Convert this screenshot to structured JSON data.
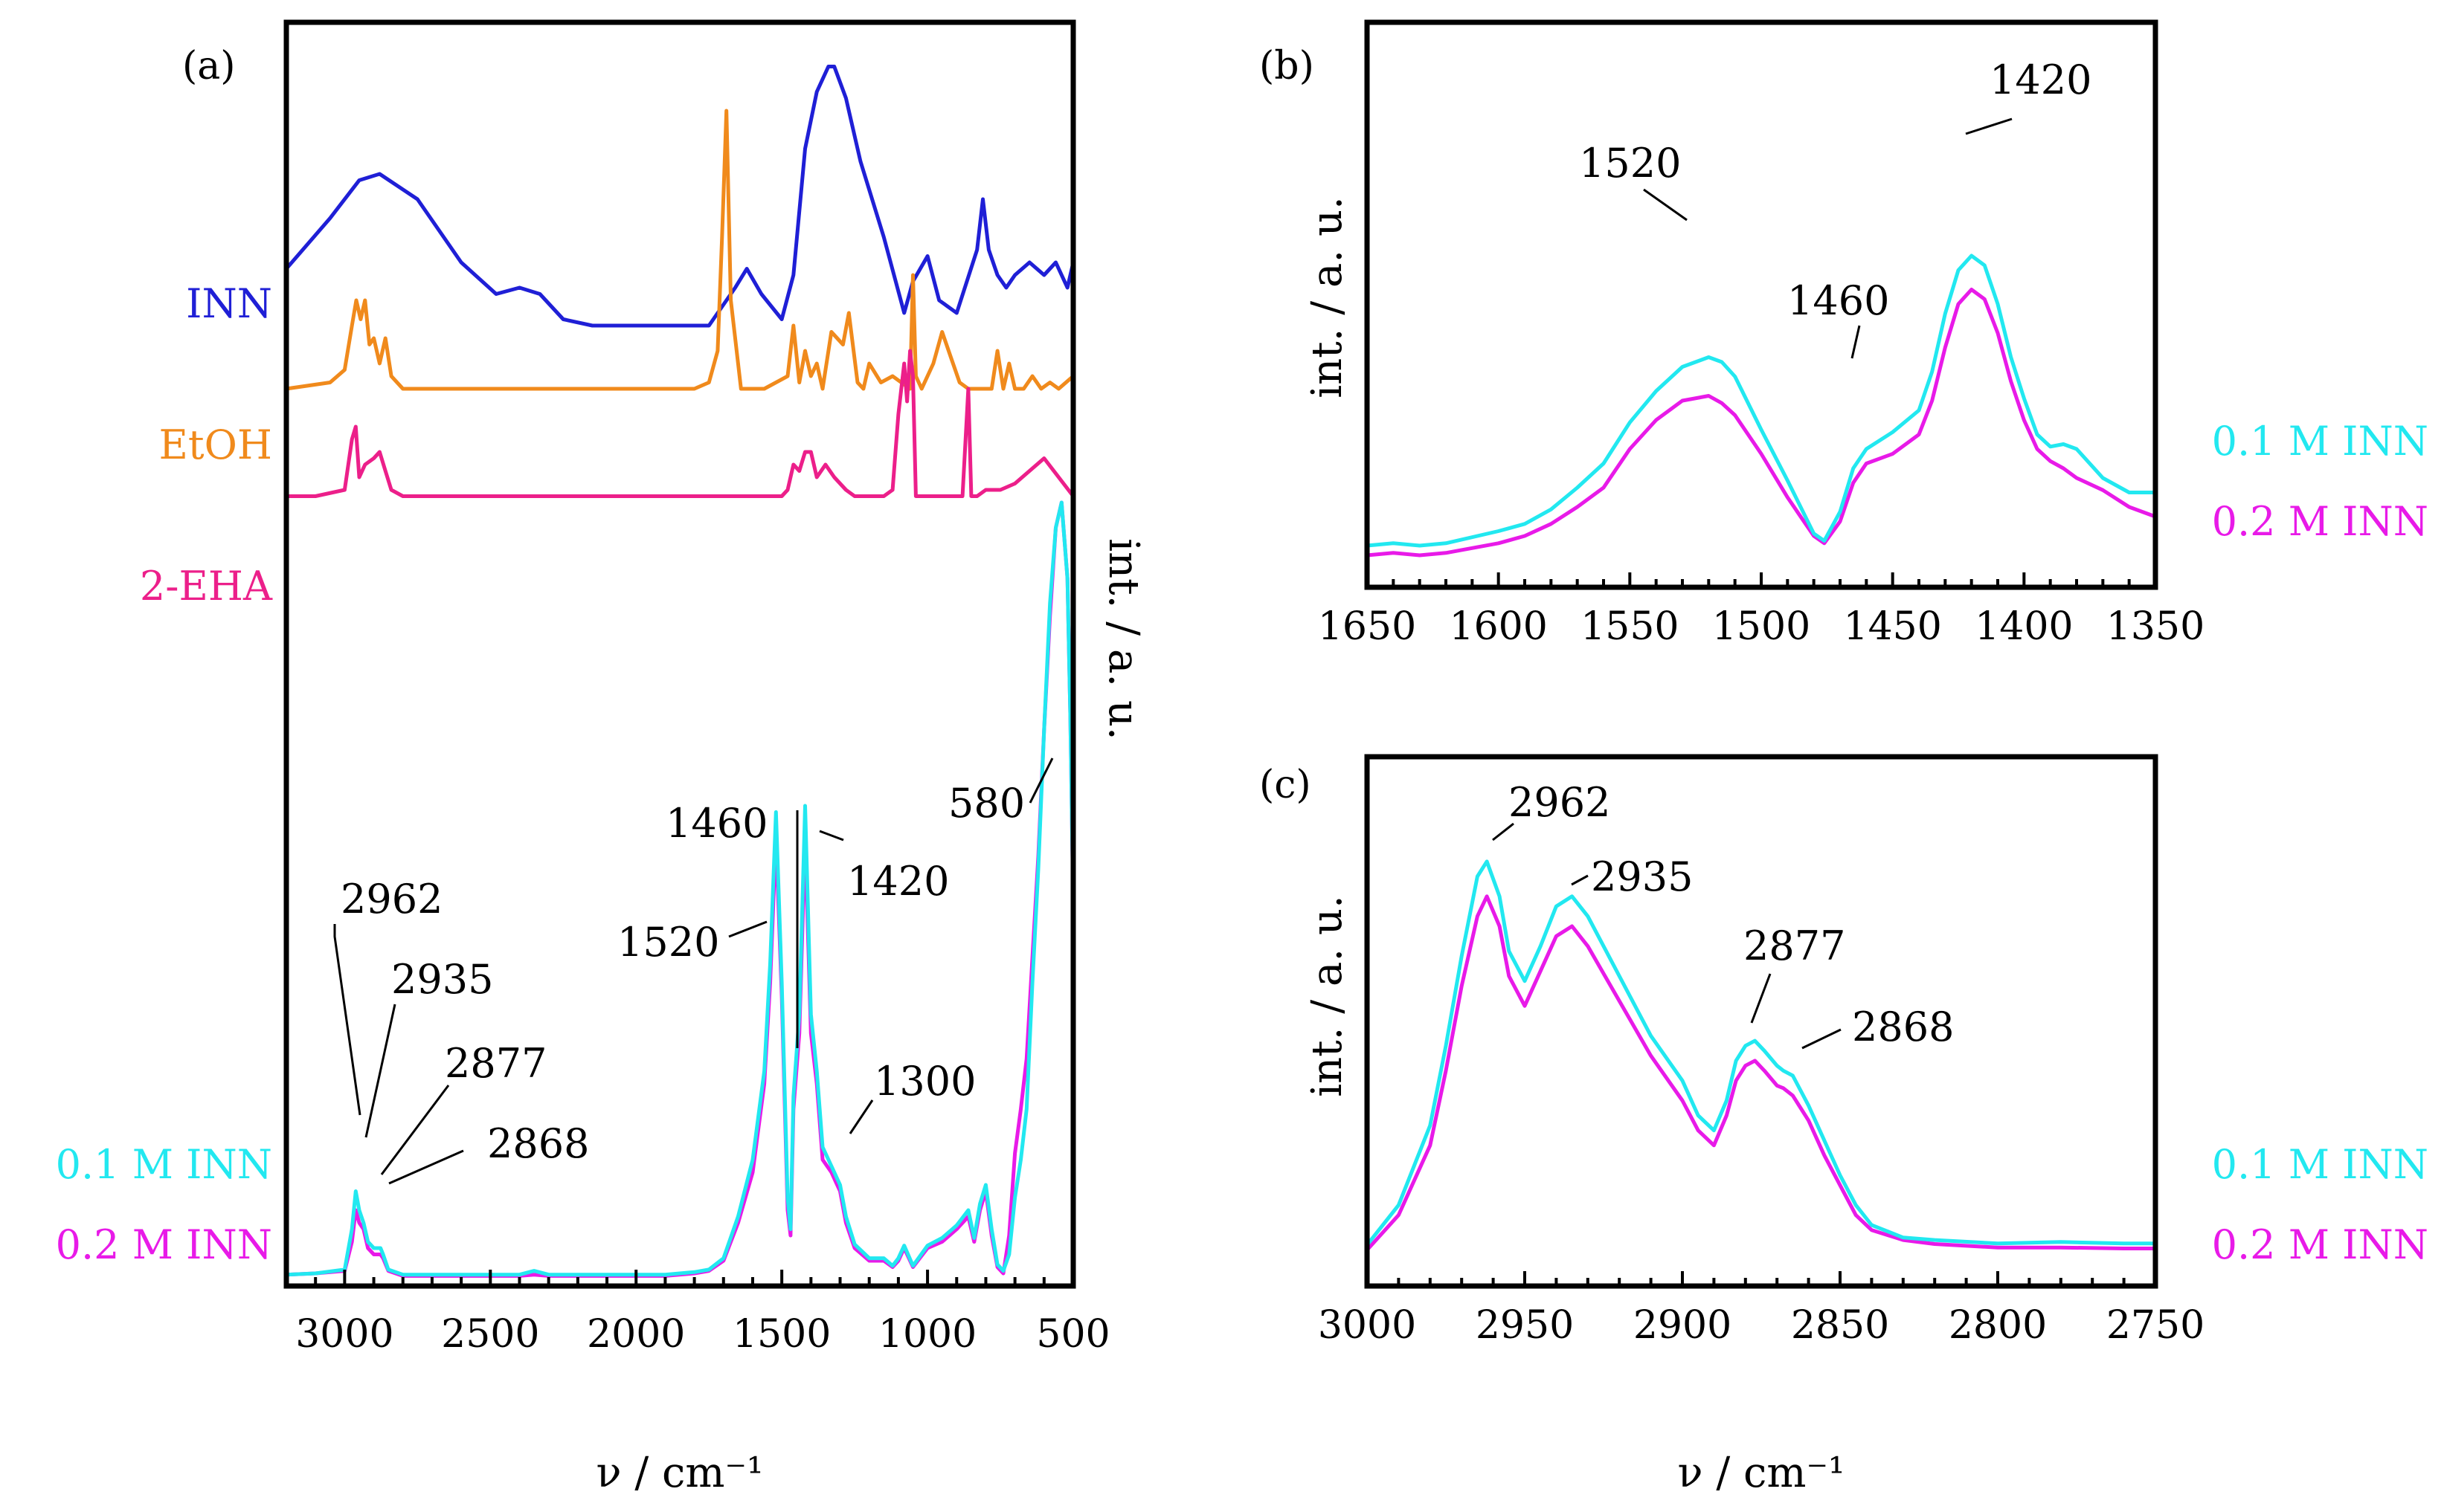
{
  "colors": {
    "inn": "#1f1fd6",
    "etoh": "#f08a1c",
    "eha": "#ec1f8a",
    "c01": "#22e8f0",
    "c02": "#e81ae8"
  },
  "panel_a": {
    "tag": "(a)",
    "xlabel": "ν / cm⁻¹",
    "ylabel": "int. / a. u.",
    "xlabels": [
      "3000",
      "2500",
      "2000",
      "1500",
      "1000",
      "500"
    ],
    "legend": {
      "inn": "INN",
      "etoh": "EtOH",
      "eha": "2-EHA",
      "c01": "0.1 M INN",
      "c02": "0.2 M INN"
    },
    "annotations": [
      "2962",
      "2935",
      "2877",
      "2868",
      "1520",
      "1460",
      "1420",
      "1300",
      "580"
    ]
  },
  "panel_b": {
    "tag": "(b)",
    "ylabel": "int. / a. u.",
    "xlabels": [
      "1650",
      "1600",
      "1550",
      "1500",
      "1450",
      "1400",
      "1350"
    ],
    "legend": {
      "c01": "0.1 M INN",
      "c02": "0.2 M INN"
    },
    "annotations": [
      "1520",
      "1460",
      "1420"
    ]
  },
  "panel_c": {
    "tag": "(c)",
    "xlabel": "ν / cm⁻¹",
    "ylabel": "int. / a. u.",
    "xlabels": [
      "3000",
      "2950",
      "2900",
      "2850",
      "2800",
      "2750"
    ],
    "legend": {
      "c01": "0.1 M INN",
      "c02": "0.2 M INN"
    },
    "annotations": [
      "2962",
      "2935",
      "2877",
      "2868"
    ]
  },
  "chart_data": [
    {
      "panel": "a",
      "type": "line",
      "title": "(a)",
      "xlabel": "ν / cm⁻¹",
      "ylabel": "int. / a. u.",
      "xlim": [
        3200,
        500
      ],
      "ylim": [
        0,
        100
      ],
      "series": [
        {
          "name": "INN",
          "color_key": "inn",
          "x": [
            3200,
            3050,
            2950,
            2880,
            2750,
            2600,
            2480,
            2400,
            2330,
            2250,
            2150,
            2000,
            1850,
            1750,
            1660,
            1620,
            1570,
            1500,
            1460,
            1420,
            1380,
            1340,
            1320,
            1280,
            1230,
            1150,
            1080,
            1050,
            1000,
            960,
            900,
            830,
            810,
            790,
            760,
            730,
            700,
            650,
            600,
            560,
            520,
            500
          ],
          "y": [
            80.5,
            84.5,
            87.5,
            88,
            86,
            81,
            78.5,
            79,
            78.5,
            76.5,
            76,
            76,
            76,
            76,
            79,
            80.5,
            78.5,
            76.5,
            80,
            90,
            94.5,
            96.5,
            96.5,
            94,
            89,
            83,
            77,
            79.5,
            81.5,
            78,
            77,
            82,
            86,
            82,
            80,
            79,
            80,
            81,
            80,
            81,
            79,
            81
          ]
        },
        {
          "name": "EtOH",
          "color_key": "etoh",
          "x": [
            3200,
            3050,
            3000,
            2975,
            2960,
            2945,
            2930,
            2915,
            2900,
            2880,
            2860,
            2840,
            2800,
            2700,
            2500,
            2000,
            1800,
            1750,
            1720,
            1705,
            1690,
            1675,
            1640,
            1560,
            1480,
            1460,
            1440,
            1420,
            1400,
            1380,
            1360,
            1330,
            1290,
            1270,
            1240,
            1220,
            1200,
            1160,
            1120,
            1090,
            1060,
            1050,
            1040,
            1020,
            980,
            950,
            920,
            890,
            860,
            820,
            800,
            780,
            760,
            740,
            720,
            700,
            670,
            640,
            610,
            580,
            550,
            500
          ],
          "y": [
            71,
            71.5,
            72.5,
            76,
            78,
            76.5,
            78,
            74.5,
            75,
            73,
            75,
            72,
            71,
            71,
            71,
            71,
            71,
            71.5,
            74,
            83,
            93,
            78,
            71,
            71,
            72,
            76,
            71.5,
            74,
            72,
            73,
            71,
            75.5,
            74.5,
            77,
            71.5,
            71,
            73,
            71.5,
            72,
            71.5,
            71,
            80,
            72,
            71,
            73,
            75.5,
            73.5,
            71.5,
            71,
            71,
            71,
            71,
            74,
            71,
            73,
            71,
            71,
            72,
            71,
            71.5,
            71,
            72
          ]
        },
        {
          "name": "2-EHA",
          "color_key": "eha",
          "x": [
            3200,
            3100,
            3000,
            2975,
            2962,
            2950,
            2930,
            2900,
            2880,
            2860,
            2840,
            2800,
            2700,
            2500,
            2000,
            1600,
            1500,
            1480,
            1460,
            1440,
            1420,
            1400,
            1380,
            1350,
            1320,
            1280,
            1250,
            1220,
            1200,
            1150,
            1120,
            1100,
            1080,
            1070,
            1060,
            1050,
            1040,
            1030,
            1000,
            950,
            900,
            880,
            860,
            850,
            830,
            800,
            750,
            700,
            650,
            600,
            550,
            500
          ],
          "y": [
            62.5,
            62.5,
            63,
            67,
            68,
            64,
            65,
            65.5,
            66,
            64.5,
            63,
            62.5,
            62.5,
            62.5,
            62.5,
            62.5,
            62.5,
            63,
            65,
            64.5,
            66,
            66,
            64,
            65,
            64,
            63,
            62.5,
            62.5,
            62.5,
            62.5,
            63,
            69,
            73,
            70,
            74,
            72,
            62.5,
            62.5,
            62.5,
            62.5,
            62.5,
            62.5,
            71,
            62.5,
            62.5,
            63,
            63,
            63.5,
            64.5,
            65.5,
            64,
            62.5
          ]
        },
        {
          "name": "0.2 M INN",
          "color_key": "c02",
          "x": [
            3200,
            3100,
            3000,
            2975,
            2962,
            2950,
            2935,
            2920,
            2900,
            2877,
            2868,
            2850,
            2800,
            2700,
            2600,
            2500,
            2400,
            2350,
            2300,
            2200,
            2100,
            2000,
            1900,
            1800,
            1750,
            1700,
            1650,
            1600,
            1560,
            1540,
            1520,
            1500,
            1480,
            1470,
            1460,
            1440,
            1420,
            1400,
            1380,
            1360,
            1330,
            1300,
            1280,
            1250,
            1200,
            1150,
            1120,
            1100,
            1080,
            1050,
            1000,
            950,
            900,
            860,
            840,
            820,
            800,
            780,
            760,
            740,
            720,
            700,
            680,
            660,
            640,
            620,
            600,
            580,
            560,
            540,
            520,
            510,
            500
          ],
          "y": [
            0.9,
            1,
            1.2,
            3.5,
            6,
            5,
            4.5,
            3,
            2.5,
            2.5,
            2.2,
            1.2,
            0.8,
            0.8,
            0.8,
            0.8,
            0.8,
            0.9,
            0.8,
            0.8,
            0.8,
            0.8,
            0.8,
            1,
            1.2,
            2,
            5,
            9,
            16,
            24,
            35.5,
            23,
            6,
            4,
            14,
            20,
            35.5,
            20,
            16,
            10,
            9,
            7.5,
            5,
            3,
            2,
            2,
            1.5,
            2,
            3,
            1.5,
            3,
            3.5,
            4.5,
            5.5,
            3.5,
            6,
            7.5,
            4,
            1.5,
            1,
            4,
            10.5,
            14,
            18,
            26,
            34,
            44,
            53,
            60,
            62,
            56,
            45,
            30
          ]
        },
        {
          "name": "0.1 M INN",
          "color_key": "c01",
          "x": [
            3200,
            3100,
            3000,
            2975,
            2962,
            2950,
            2935,
            2920,
            2900,
            2877,
            2868,
            2850,
            2800,
            2700,
            2600,
            2500,
            2400,
            2350,
            2300,
            2200,
            2100,
            2000,
            1900,
            1800,
            1750,
            1700,
            1650,
            1600,
            1560,
            1540,
            1520,
            1500,
            1480,
            1470,
            1460,
            1440,
            1420,
            1400,
            1380,
            1360,
            1330,
            1300,
            1280,
            1250,
            1200,
            1150,
            1120,
            1100,
            1080,
            1050,
            1000,
            950,
            900,
            860,
            840,
            820,
            800,
            780,
            760,
            740,
            720,
            700,
            680,
            660,
            640,
            620,
            600,
            580,
            560,
            540,
            520,
            510,
            500
          ],
          "y": [
            0.9,
            1,
            1.3,
            4.5,
            7.5,
            6,
            5,
            3.5,
            3,
            3,
            2.5,
            1.3,
            0.9,
            0.9,
            0.9,
            0.9,
            0.9,
            1.2,
            0.9,
            0.9,
            0.9,
            0.9,
            0.9,
            1.1,
            1.3,
            2.2,
            5.5,
            10,
            17,
            25.5,
            37.5,
            24,
            7,
            4.5,
            15,
            21.5,
            38,
            21.5,
            17,
            11,
            9.5,
            8,
            5.5,
            3.3,
            2.2,
            2.2,
            1.6,
            2.2,
            3.2,
            1.6,
            3.2,
            3.8,
            4.8,
            6,
            3.8,
            6.5,
            8,
            4.5,
            1.7,
            1.2,
            2.5,
            7,
            10,
            14,
            24,
            33,
            44,
            54,
            60,
            62,
            56,
            45,
            30
          ]
        }
      ]
    },
    {
      "panel": "b",
      "type": "line",
      "title": "(b)",
      "xlabel": "",
      "ylabel": "int. / a. u.",
      "xlim": [
        1650,
        1350
      ],
      "ylim": [
        0,
        100
      ],
      "series": [
        {
          "name": "0.1 M INN",
          "color_key": "c01",
          "x": [
            1650,
            1640,
            1630,
            1620,
            1600,
            1590,
            1580,
            1570,
            1560,
            1550,
            1540,
            1530,
            1520,
            1515,
            1510,
            1500,
            1490,
            1480,
            1476,
            1470,
            1465,
            1460,
            1450,
            1440,
            1435,
            1430,
            1425,
            1420,
            1415,
            1410,
            1405,
            1400,
            1395,
            1390,
            1385,
            1380,
            1370,
            1360,
            1350
          ],
          "y": [
            4,
            4.5,
            4,
            4.5,
            7,
            8.5,
            11.5,
            16,
            21,
            29.5,
            36,
            41,
            43,
            42,
            39,
            28,
            17.5,
            6.5,
            5,
            11,
            20,
            24,
            27.5,
            32,
            40,
            52,
            61,
            64,
            62,
            54,
            43,
            34.5,
            27,
            24.5,
            25,
            24,
            18,
            15,
            15
          ]
        },
        {
          "name": "0.2 M INN",
          "color_key": "c02",
          "x": [
            1650,
            1640,
            1630,
            1620,
            1600,
            1590,
            1580,
            1570,
            1560,
            1550,
            1540,
            1530,
            1520,
            1515,
            1510,
            1500,
            1490,
            1480,
            1476,
            1470,
            1465,
            1460,
            1450,
            1440,
            1435,
            1430,
            1425,
            1420,
            1415,
            1410,
            1405,
            1400,
            1395,
            1390,
            1385,
            1380,
            1370,
            1360,
            1350
          ],
          "y": [
            2,
            2.5,
            2,
            2.5,
            4.5,
            6,
            8.5,
            12,
            16,
            24,
            30,
            34,
            35,
            33.5,
            31,
            23,
            14,
            6,
            4.5,
            9,
            17,
            21,
            23,
            27,
            34,
            45,
            54,
            57,
            55,
            48,
            38,
            30,
            24,
            21.5,
            20,
            18,
            15.5,
            12,
            10
          ]
        }
      ]
    },
    {
      "panel": "c",
      "type": "line",
      "title": "(c)",
      "xlabel": "ν / cm⁻¹",
      "ylabel": "int. / a. u.",
      "xlim": [
        3000,
        2750
      ],
      "ylim": [
        0,
        100
      ],
      "series": [
        {
          "name": "0.1 M INN",
          "color_key": "c01",
          "x": [
            3000,
            2990,
            2980,
            2975,
            2970,
            2965,
            2962,
            2958,
            2955,
            2950,
            2945,
            2940,
            2935,
            2930,
            2920,
            2910,
            2900,
            2895,
            2890,
            2886,
            2883,
            2880,
            2877,
            2874,
            2870,
            2868,
            2865,
            2860,
            2855,
            2850,
            2845,
            2840,
            2830,
            2820,
            2800,
            2780,
            2760,
            2750
          ],
          "y": [
            6,
            14,
            30,
            46,
            64,
            80,
            83,
            76,
            65,
            59,
            66,
            74,
            76,
            72,
            60,
            48,
            39,
            32,
            29,
            35,
            43,
            46,
            47,
            45,
            42,
            41,
            40,
            34,
            27,
            20,
            14,
            10,
            7.5,
            7,
            6.3,
            6.6,
            6.3,
            6.3
          ]
        },
        {
          "name": "0.2 M INN",
          "color_key": "c02",
          "x": [
            3000,
            2990,
            2980,
            2975,
            2970,
            2965,
            2962,
            2958,
            2955,
            2950,
            2945,
            2940,
            2935,
            2930,
            2920,
            2910,
            2900,
            2895,
            2890,
            2886,
            2883,
            2880,
            2877,
            2874,
            2870,
            2868,
            2865,
            2860,
            2855,
            2850,
            2845,
            2840,
            2830,
            2820,
            2800,
            2780,
            2760,
            2750
          ],
          "y": [
            5,
            12,
            26,
            41,
            58,
            72,
            76,
            70,
            60,
            54,
            61,
            68,
            70,
            66,
            55,
            44,
            35,
            29,
            26,
            32,
            39,
            42,
            43,
            41,
            38,
            37.5,
            36,
            31,
            24,
            18,
            12,
            9,
            7,
            6.2,
            5.5,
            5.5,
            5.3,
            5.3
          ]
        }
      ]
    }
  ]
}
